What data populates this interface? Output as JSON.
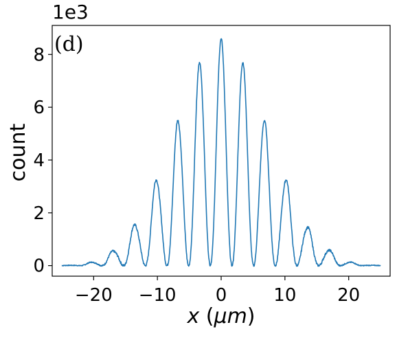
{
  "chart_data": {
    "type": "line",
    "panel_label": "(d)",
    "offset_text": "1e3",
    "xlabel": {
      "var": "x",
      "unit_open": " (",
      "unit": "μm",
      "unit_close": ")"
    },
    "ylabel": "count",
    "xlim": [
      -26.5,
      26.5
    ],
    "ylim": [
      -0.4,
      9.1
    ],
    "xticks": [
      -20,
      -10,
      0,
      10,
      20
    ],
    "xtick_labels": [
      "−20",
      "−10",
      "0",
      "10",
      "20"
    ],
    "yticks": [
      0,
      2,
      4,
      6,
      8
    ],
    "ytick_labels": [
      "0",
      "2",
      "4",
      "6",
      "8"
    ],
    "grid": false,
    "line_color": "#1f77b4",
    "peaks": {
      "x": [
        -23.5,
        -20.2,
        -17.0,
        -13.6,
        -10.2,
        -6.8,
        -3.4,
        0,
        3.4,
        6.8,
        10.2,
        13.6,
        17.0,
        20.2,
        23.5
      ],
      "y": [
        0.01,
        0.13,
        0.55,
        1.55,
        3.25,
        5.5,
        7.7,
        8.6,
        7.7,
        5.5,
        3.25,
        1.45,
        0.58,
        0.13,
        0.01
      ]
    },
    "series": [
      {
        "x_range": [
          -25,
          25
        ],
        "fringe_period": 3.4,
        "values_note_units": "thousands"
      }
    ]
  }
}
